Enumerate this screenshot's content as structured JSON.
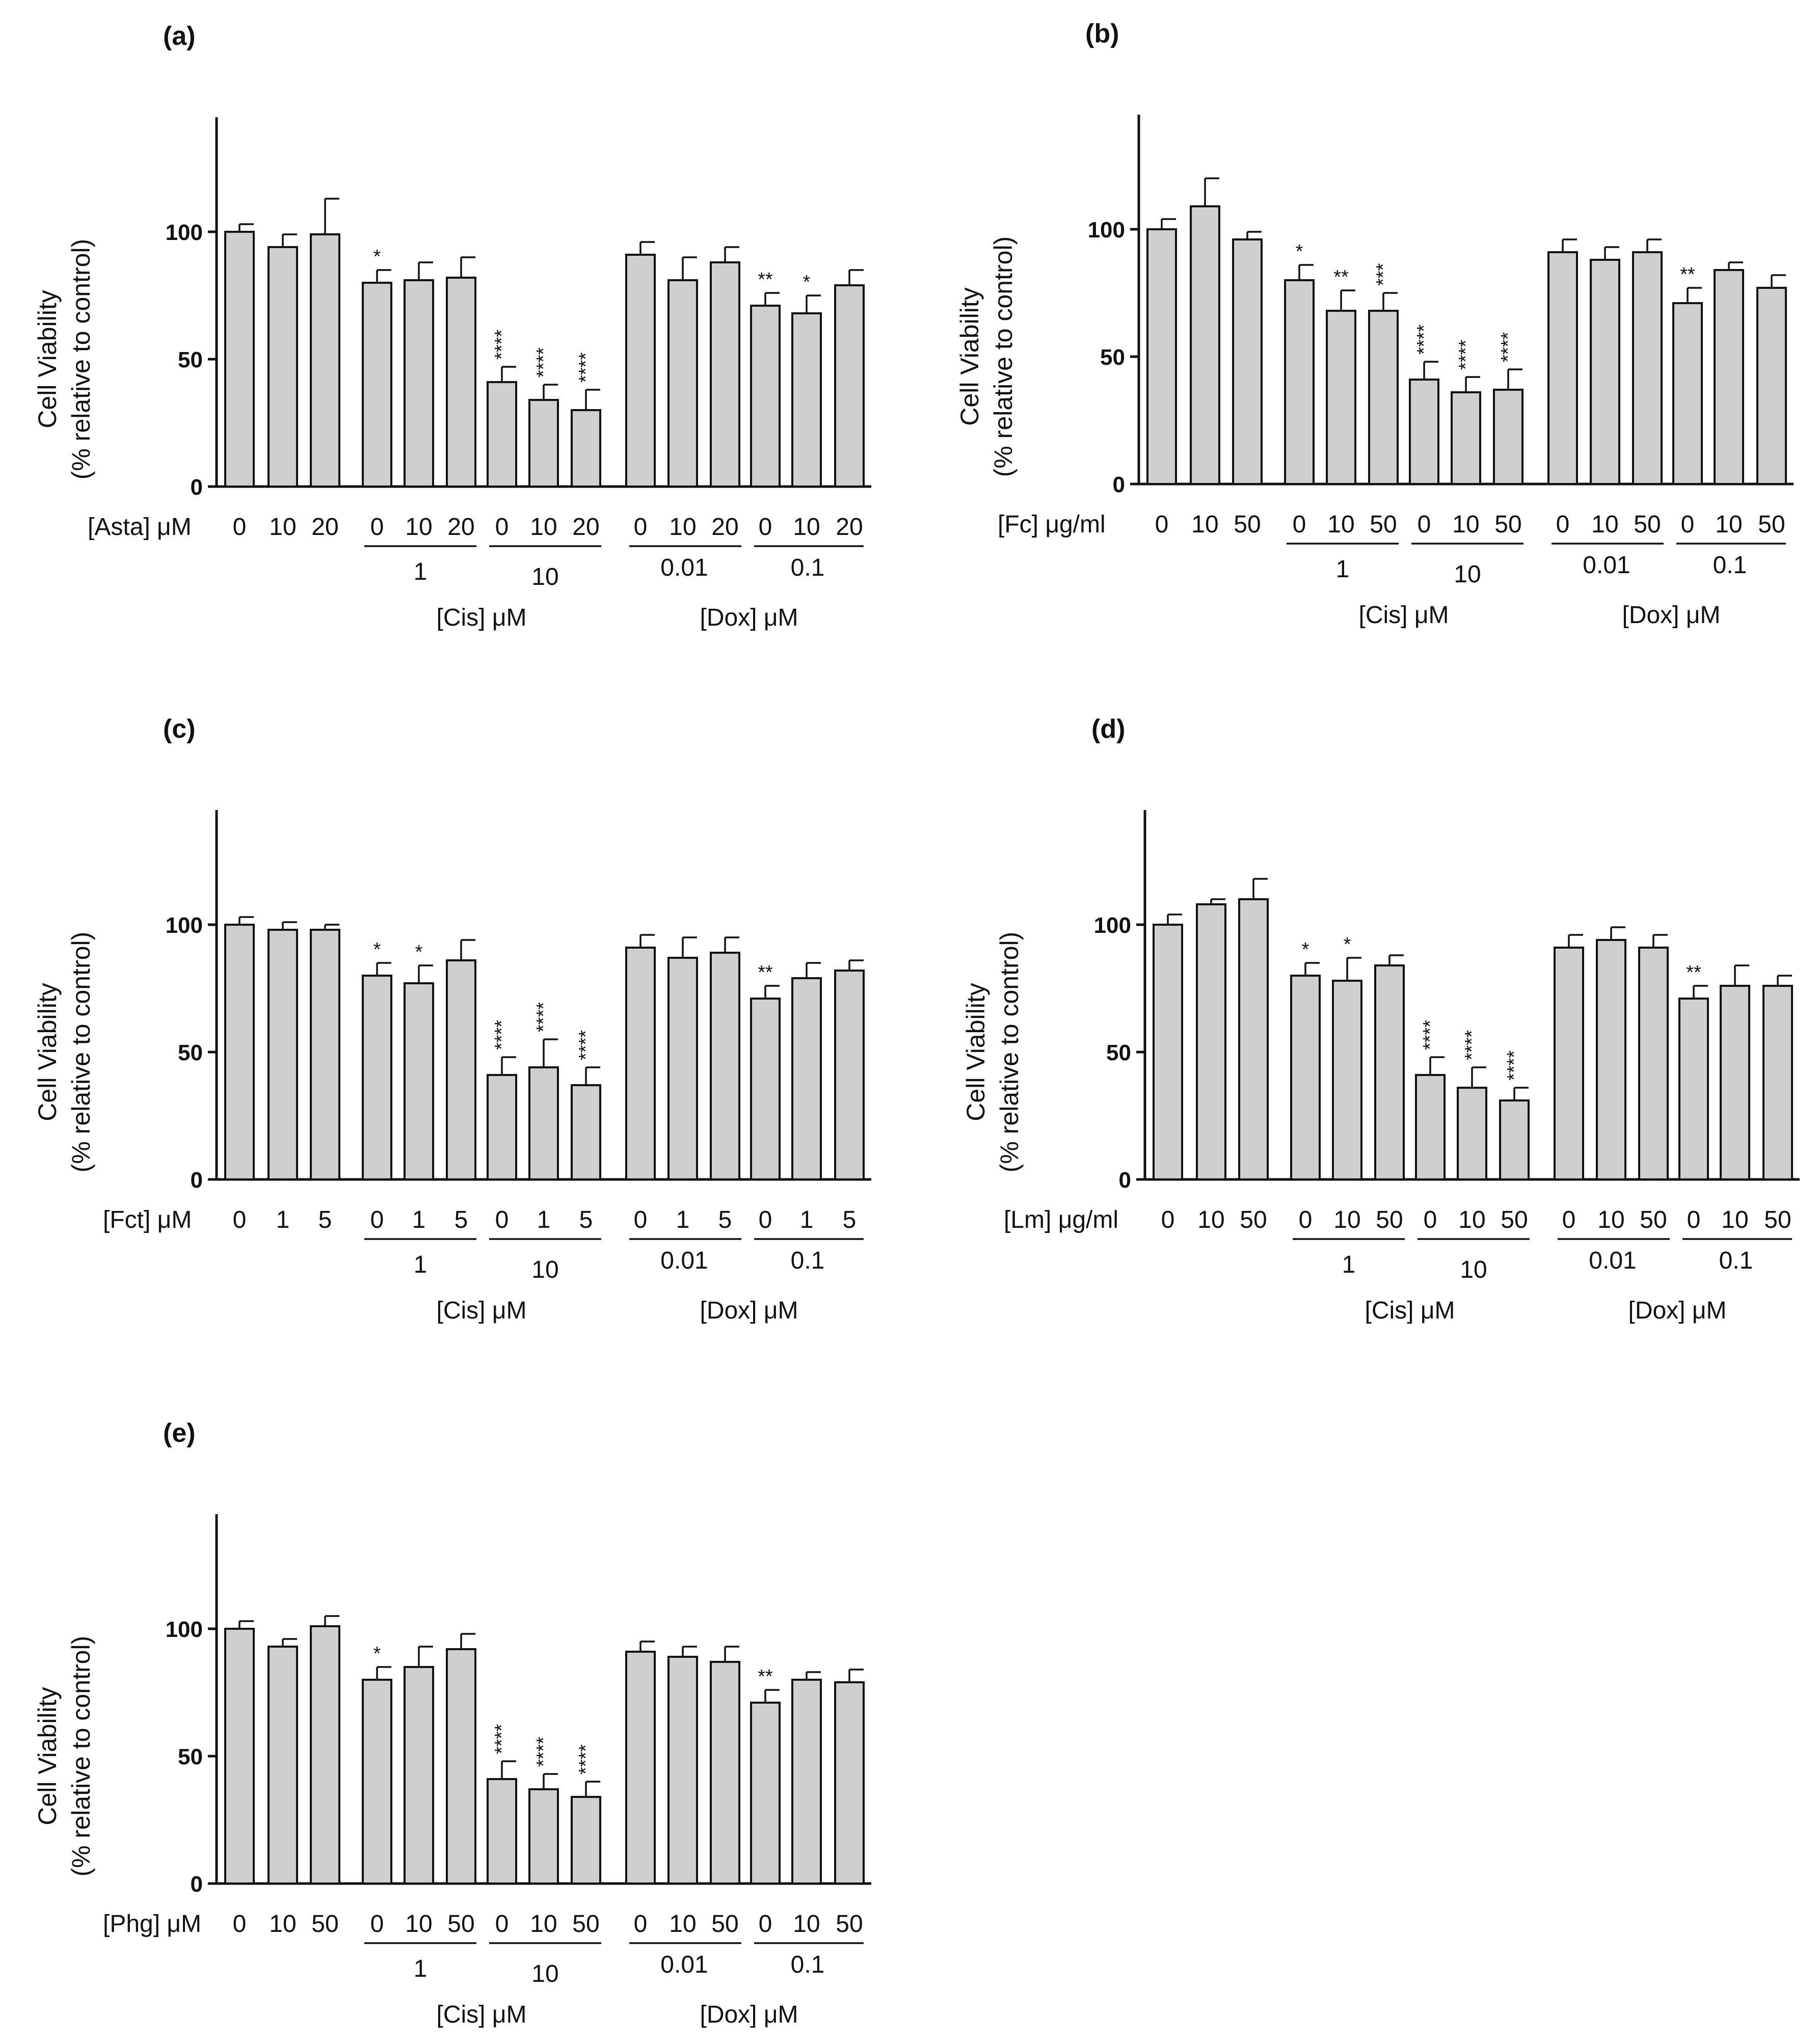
{
  "chart_data": [
    {
      "panel": "(a)",
      "type": "bar",
      "ylabel": [
        "Cell Viability",
        "(% relative to control)"
      ],
      "yticks": [
        0,
        50,
        100
      ],
      "ylim": [
        0,
        145
      ],
      "agent_label": "[Asta] μM",
      "x_tick_labels": [
        "0",
        "10",
        "20",
        "0",
        "10",
        "20",
        "0",
        "10",
        "20",
        "0",
        "10",
        "20",
        "0",
        "10",
        "20"
      ],
      "values": [
        100,
        94,
        99,
        80,
        81,
        82,
        41,
        34,
        30,
        91,
        81,
        88,
        71,
        68,
        79
      ],
      "errors": [
        3,
        5,
        14,
        5,
        7,
        8,
        6,
        6,
        8,
        5,
        9,
        6,
        5,
        7,
        6
      ],
      "significance": [
        "",
        "",
        "",
        "*",
        "",
        "",
        "****",
        "****",
        "****",
        "",
        "",
        "",
        "**",
        "*",
        ""
      ],
      "group_labels": [
        "1",
        "10",
        "0.01",
        "0.1"
      ],
      "group_titles": [
        "[Cis] μM",
        "[Dox] μM"
      ]
    },
    {
      "panel": "(b)",
      "type": "bar",
      "ylabel": [
        "Cell Viability",
        "(% relative to control)"
      ],
      "yticks": [
        0,
        50,
        100
      ],
      "ylim": [
        0,
        145
      ],
      "agent_label": "[Fc] μg/ml",
      "x_tick_labels": [
        "0",
        "10",
        "50",
        "0",
        "10",
        "50",
        "0",
        "10",
        "50",
        "0",
        "10",
        "50",
        "0",
        "10",
        "50"
      ],
      "values": [
        100,
        109,
        96,
        80,
        68,
        68,
        41,
        36,
        37,
        91,
        88,
        91,
        71,
        84,
        77
      ],
      "errors": [
        4,
        11,
        3,
        6,
        8,
        7,
        7,
        6,
        8,
        5,
        5,
        5,
        6,
        3,
        5
      ],
      "significance": [
        "",
        "",
        "",
        "*",
        "**",
        "***",
        "****",
        "****",
        "****",
        "",
        "",
        "",
        "**",
        "",
        ""
      ],
      "group_labels": [
        "1",
        "10",
        "0.01",
        "0.1"
      ],
      "group_titles": [
        "[Cis] μM",
        "[Dox] μM"
      ]
    },
    {
      "panel": "(c)",
      "type": "bar",
      "ylabel": [
        "Cell Viability",
        "(% relative to control)"
      ],
      "yticks": [
        0,
        50,
        100
      ],
      "ylim": [
        0,
        145
      ],
      "agent_label": "[Fct] μM",
      "x_tick_labels": [
        "0",
        "1",
        "5",
        "0",
        "1",
        "5",
        "0",
        "1",
        "5",
        "0",
        "1",
        "5",
        "0",
        "1",
        "5"
      ],
      "values": [
        100,
        98,
        98,
        80,
        77,
        86,
        41,
        44,
        37,
        91,
        87,
        89,
        71,
        79,
        82
      ],
      "errors": [
        3,
        3,
        2,
        5,
        7,
        8,
        7,
        11,
        7,
        5,
        8,
        6,
        5,
        6,
        4
      ],
      "significance": [
        "",
        "",
        "",
        "*",
        "*",
        "",
        "****",
        "****",
        "****",
        "",
        "",
        "",
        "**",
        "",
        ""
      ],
      "group_labels": [
        "1",
        "10",
        "0.01",
        "0.1"
      ],
      "group_titles": [
        "[Cis] μM",
        "[Dox] μM"
      ]
    },
    {
      "panel": "(d)",
      "type": "bar",
      "ylabel": [
        "Cell Viability",
        "(% relative to control)"
      ],
      "yticks": [
        0,
        50,
        100
      ],
      "ylim": [
        0,
        145
      ],
      "agent_label": "[Lm] μg/ml",
      "x_tick_labels": [
        "0",
        "10",
        "50",
        "0",
        "10",
        "50",
        "0",
        "10",
        "50",
        "0",
        "10",
        "50",
        "0",
        "10",
        "50"
      ],
      "values": [
        100,
        108,
        110,
        80,
        78,
        84,
        41,
        36,
        31,
        91,
        94,
        91,
        71,
        76,
        76
      ],
      "errors": [
        4,
        2,
        8,
        5,
        9,
        4,
        7,
        8,
        5,
        5,
        5,
        5,
        5,
        8,
        4
      ],
      "significance": [
        "",
        "",
        "",
        "*",
        "*",
        "",
        "****",
        "****",
        "****",
        "",
        "",
        "",
        "**",
        "",
        ""
      ],
      "group_labels": [
        "1",
        "10",
        "0.01",
        "0.1"
      ],
      "group_titles": [
        "[Cis] μM",
        "[Dox] μM"
      ]
    },
    {
      "panel": "(e)",
      "type": "bar",
      "ylabel": [
        "Cell Viability",
        "(% relative to control)"
      ],
      "yticks": [
        0,
        50,
        100
      ],
      "ylim": [
        0,
        145
      ],
      "agent_label": "[Phg] μM",
      "x_tick_labels": [
        "0",
        "10",
        "50",
        "0",
        "10",
        "50",
        "0",
        "10",
        "50",
        "0",
        "10",
        "50",
        "0",
        "10",
        "50"
      ],
      "values": [
        100,
        93,
        101,
        80,
        85,
        92,
        41,
        37,
        34,
        91,
        89,
        87,
        71,
        80,
        79
      ],
      "errors": [
        3,
        3,
        4,
        5,
        8,
        6,
        7,
        6,
        6,
        4,
        4,
        6,
        5,
        3,
        5
      ],
      "significance": [
        "",
        "",
        "",
        "*",
        "",
        "",
        "****",
        "****",
        "****",
        "",
        "",
        "",
        "**",
        "",
        ""
      ],
      "group_labels": [
        "1",
        "10",
        "0.01",
        "0.1"
      ],
      "group_titles": [
        "[Cis] μM",
        "[Dox] μM"
      ]
    }
  ]
}
